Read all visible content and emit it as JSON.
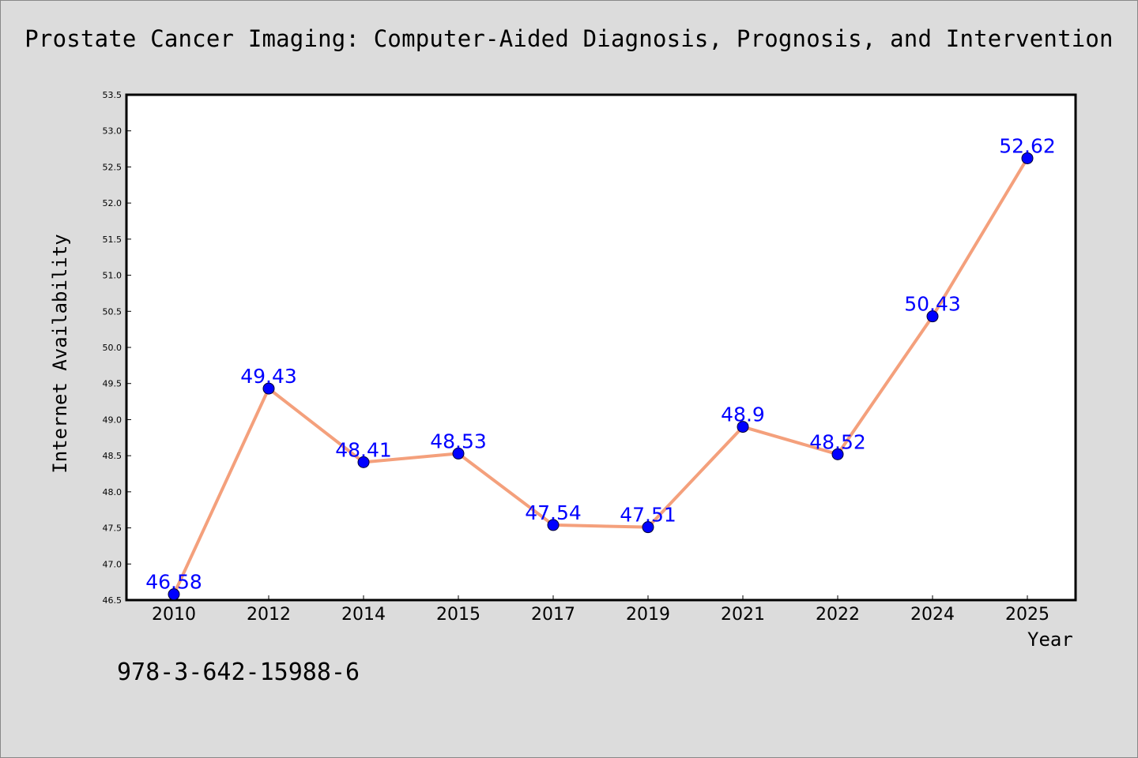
{
  "page": {
    "title": "Prostate Cancer Imaging: Computer-Aided Diagnosis, Prognosis, and Intervention",
    "isbn": "978-3-642-15988-6"
  },
  "chart_data": {
    "type": "line",
    "title": "Prostate Cancer Imaging: Computer-Aided Diagnosis, Prognosis, and Intervention",
    "xlabel": "Year",
    "ylabel": "Internet Availability",
    "categories": [
      "2010",
      "2012",
      "2014",
      "2015",
      "2017",
      "2019",
      "2021",
      "2022",
      "2024",
      "2025"
    ],
    "values": [
      46.58,
      49.43,
      48.41,
      48.53,
      47.54,
      47.51,
      48.9,
      48.52,
      50.43,
      52.62
    ],
    "data_labels": [
      "46.58",
      "49.43",
      "48.41",
      "48.53",
      "47.54",
      "47.51",
      "48.9",
      "48.52",
      "50.43",
      "52.62"
    ],
    "ylim": [
      46.5,
      53.5
    ],
    "yticks": [
      "46.5",
      "47.0",
      "47.5",
      "48.0",
      "48.5",
      "49.0",
      "49.5",
      "50.0",
      "50.5",
      "51.0",
      "51.5",
      "52.0",
      "52.5",
      "53.0",
      "53.5"
    ],
    "grid": false,
    "legend": "none",
    "colors": {
      "line": "#f4a07c",
      "marker": "#0000ff",
      "label": "#0000ff",
      "background": "#dcdcdc",
      "plot_background": "#ffffff"
    }
  }
}
